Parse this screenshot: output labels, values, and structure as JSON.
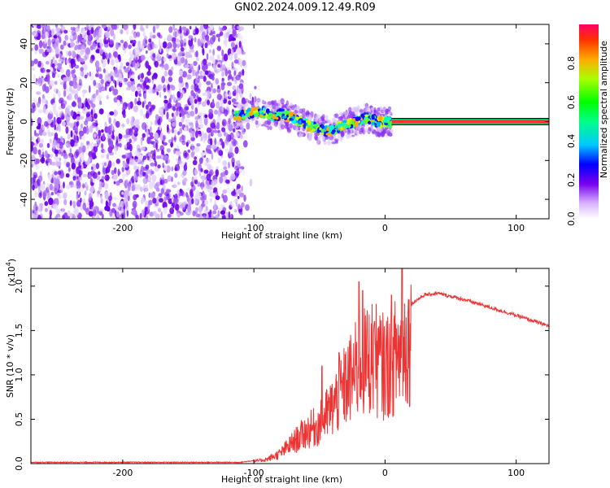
{
  "title": "GN02.2024.009.12.49.R09",
  "chart_data": [
    {
      "type": "heatmap",
      "xlabel": "Height of straight line (km)",
      "ylabel": "Frequency (Hz)",
      "xlim": [
        -270,
        125
      ],
      "ylim": [
        -50,
        50
      ],
      "xticks": [
        -200,
        -100,
        0,
        100
      ],
      "yticks": [
        -40,
        -20,
        0,
        20,
        40
      ],
      "colorbar": {
        "label": "Normalized spectral amplitude",
        "range": [
          0,
          1
        ],
        "ticks": [
          "0.0",
          "0.2",
          "0.4",
          "0.6",
          "0.8"
        ]
      },
      "noise_region": {
        "x_end": -108,
        "density": "scattered"
      },
      "signal_track": [
        {
          "x": -115,
          "y": 3
        },
        {
          "x": -105,
          "y": 4
        },
        {
          "x": -95,
          "y": 5
        },
        {
          "x": -85,
          "y": 3
        },
        {
          "x": -78,
          "y": 4
        },
        {
          "x": -72,
          "y": 2
        },
        {
          "x": -65,
          "y": 0
        },
        {
          "x": -58,
          "y": -2
        },
        {
          "x": -50,
          "y": -4
        },
        {
          "x": -42,
          "y": -5
        },
        {
          "x": -35,
          "y": -3
        },
        {
          "x": -28,
          "y": -1
        },
        {
          "x": -22,
          "y": 0
        },
        {
          "x": -15,
          "y": 2
        },
        {
          "x": -10,
          "y": 1
        },
        {
          "x": -5,
          "y": 0
        },
        {
          "x": 0,
          "y": 0
        },
        {
          "x": 5,
          "y": 0
        }
      ],
      "steady_line": {
        "x_start": 5,
        "x_end": 125,
        "y": 0
      }
    },
    {
      "type": "line",
      "xlabel": "Height of straight line (km)",
      "ylabel": "SNR (10 * v/v)",
      "scale_label": "(x10",
      "scale_exponent": "4",
      "scale_close": ")",
      "xlim": [
        -270,
        125
      ],
      "ylim": [
        0,
        2.2
      ],
      "xticks": [
        -200,
        -100,
        0,
        100
      ],
      "yticks": [
        0.0,
        0.5,
        1.0,
        1.5,
        2.0
      ],
      "ytick_labels": [
        "0.0",
        "0.5",
        "1.0",
        "1.5",
        "2.0"
      ],
      "line_color": "#ee3333",
      "series": [
        {
          "envelope": [
            {
              "x": -270,
              "y": 0.01
            },
            {
              "x": -110,
              "y": 0.01
            },
            {
              "x": -100,
              "y": 0.03
            },
            {
              "x": -90,
              "y": 0.06
            },
            {
              "x": -80,
              "y": 0.14
            },
            {
              "x": -70,
              "y": 0.3
            },
            {
              "x": -60,
              "y": 0.45
            },
            {
              "x": -50,
              "y": 0.55
            },
            {
              "x": -40,
              "y": 0.8
            },
            {
              "x": -30,
              "y": 1.1
            },
            {
              "x": -20,
              "y": 1.35
            },
            {
              "x": -10,
              "y": 1.5
            },
            {
              "x": 0,
              "y": 1.35
            },
            {
              "x": 10,
              "y": 1.55
            },
            {
              "x": 20,
              "y": 1.8
            },
            {
              "x": 30,
              "y": 1.9
            },
            {
              "x": 40,
              "y": 1.92
            },
            {
              "x": 60,
              "y": 1.85
            },
            {
              "x": 80,
              "y": 1.76
            },
            {
              "x": 100,
              "y": 1.67
            },
            {
              "x": 125,
              "y": 1.55
            }
          ],
          "spikes": [
            {
              "x": -48,
              "y": 1.1
            },
            {
              "x": -35,
              "y": 1.25
            },
            {
              "x": -20,
              "y": 2.05
            },
            {
              "x": -17,
              "y": 1.95
            },
            {
              "x": -8,
              "y": 1.6
            },
            {
              "x": 13,
              "y": 2.2
            },
            {
              "x": 5,
              "y": 1.9
            }
          ]
        }
      ]
    }
  ]
}
